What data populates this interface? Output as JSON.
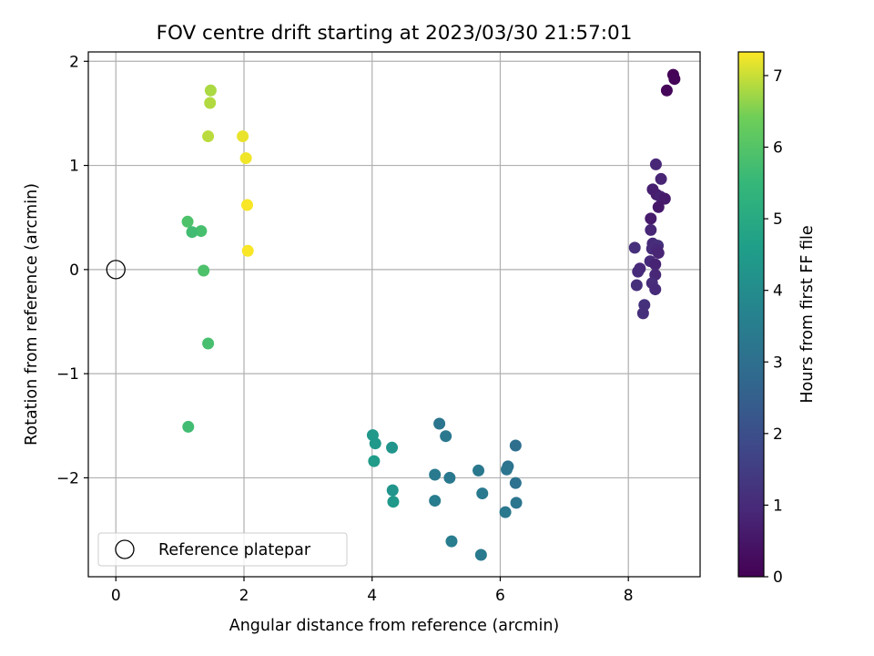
{
  "chart_data": {
    "type": "scatter",
    "title": "FOV centre drift starting at 2023/03/30 21:57:01",
    "xlabel": "Angular distance from reference (arcmin)",
    "ylabel": "Rotation from reference (arcmin)",
    "xlim": [
      -0.43,
      9.12
    ],
    "ylim": [
      -2.95,
      2.09
    ],
    "xticks": [
      0,
      2,
      4,
      6,
      8
    ],
    "xtick_labels": [
      "0",
      "2",
      "4",
      "6",
      "8"
    ],
    "yticks": [
      -2,
      -1,
      0,
      1,
      2
    ],
    "ytick_labels": [
      "−2",
      "−1",
      "0",
      "1",
      "2"
    ],
    "grid": true,
    "legend": {
      "placement": "lower-left",
      "entries": [
        "Reference platepar"
      ]
    },
    "reference_point": {
      "x": 0,
      "y": 0,
      "marker": "hollow-circle"
    },
    "colormap": "viridis",
    "colorbar": {
      "label": "Hours from first FF file",
      "range": [
        0,
        7.33
      ],
      "ticks": [
        0,
        1,
        2,
        3,
        4,
        5,
        6,
        7
      ],
      "tick_labels": [
        "0",
        "1",
        "2",
        "3",
        "4",
        "5",
        "6",
        "7"
      ]
    },
    "points": [
      {
        "x": 8.7,
        "y": 1.87,
        "c": 0.05
      },
      {
        "x": 8.72,
        "y": 1.83,
        "c": 0.08
      },
      {
        "x": 8.6,
        "y": 1.72,
        "c": 0.12
      },
      {
        "x": 8.43,
        "y": 1.01,
        "c": 0.9
      },
      {
        "x": 8.51,
        "y": 0.87,
        "c": 0.85
      },
      {
        "x": 8.38,
        "y": 0.77,
        "c": 0.7
      },
      {
        "x": 8.44,
        "y": 0.72,
        "c": 0.65
      },
      {
        "x": 8.5,
        "y": 0.7,
        "c": 0.75
      },
      {
        "x": 8.57,
        "y": 0.68,
        "c": 0.6
      },
      {
        "x": 8.47,
        "y": 0.6,
        "c": 0.55
      },
      {
        "x": 8.35,
        "y": 0.49,
        "c": 0.6
      },
      {
        "x": 8.35,
        "y": 0.38,
        "c": 0.9
      },
      {
        "x": 8.38,
        "y": 0.25,
        "c": 1.0
      },
      {
        "x": 8.46,
        "y": 0.23,
        "c": 1.1
      },
      {
        "x": 8.37,
        "y": 0.2,
        "c": 1.05
      },
      {
        "x": 8.44,
        "y": 0.19,
        "c": 0.95
      },
      {
        "x": 8.1,
        "y": 0.21,
        "c": 1.1
      },
      {
        "x": 8.47,
        "y": 0.16,
        "c": 0.85
      },
      {
        "x": 8.34,
        "y": 0.08,
        "c": 1.0
      },
      {
        "x": 8.42,
        "y": 0.05,
        "c": 0.8
      },
      {
        "x": 8.18,
        "y": 0.01,
        "c": 0.95
      },
      {
        "x": 8.15,
        "y": -0.02,
        "c": 1.0
      },
      {
        "x": 8.42,
        "y": -0.05,
        "c": 0.9
      },
      {
        "x": 8.37,
        "y": -0.13,
        "c": 1.05
      },
      {
        "x": 8.13,
        "y": -0.15,
        "c": 1.1
      },
      {
        "x": 8.42,
        "y": -0.19,
        "c": 1.0
      },
      {
        "x": 8.25,
        "y": -0.34,
        "c": 1.15
      },
      {
        "x": 8.23,
        "y": -0.42,
        "c": 1.1
      },
      {
        "x": 5.05,
        "y": -1.48,
        "c": 3.2
      },
      {
        "x": 5.15,
        "y": -1.6,
        "c": 3.3
      },
      {
        "x": 6.24,
        "y": -1.69,
        "c": 3.0
      },
      {
        "x": 6.12,
        "y": -1.89,
        "c": 3.1
      },
      {
        "x": 5.66,
        "y": -1.93,
        "c": 3.3
      },
      {
        "x": 6.1,
        "y": -1.92,
        "c": 3.2
      },
      {
        "x": 4.98,
        "y": -1.97,
        "c": 3.4
      },
      {
        "x": 5.21,
        "y": -2.0,
        "c": 3.3
      },
      {
        "x": 6.24,
        "y": -2.05,
        "c": 3.1
      },
      {
        "x": 5.72,
        "y": -2.15,
        "c": 3.4
      },
      {
        "x": 4.98,
        "y": -2.22,
        "c": 3.5
      },
      {
        "x": 6.25,
        "y": -2.24,
        "c": 3.2
      },
      {
        "x": 6.08,
        "y": -2.33,
        "c": 3.3
      },
      {
        "x": 5.24,
        "y": -2.61,
        "c": 3.5
      },
      {
        "x": 5.7,
        "y": -2.74,
        "c": 3.4
      },
      {
        "x": 4.01,
        "y": -1.59,
        "c": 4.4
      },
      {
        "x": 4.05,
        "y": -1.67,
        "c": 4.4
      },
      {
        "x": 4.31,
        "y": -1.71,
        "c": 4.3
      },
      {
        "x": 4.03,
        "y": -1.84,
        "c": 4.5
      },
      {
        "x": 4.32,
        "y": -2.12,
        "c": 4.3
      },
      {
        "x": 4.33,
        "y": -2.23,
        "c": 4.4
      },
      {
        "x": 1.12,
        "y": 0.46,
        "c": 5.9
      },
      {
        "x": 1.33,
        "y": 0.37,
        "c": 5.8
      },
      {
        "x": 1.19,
        "y": 0.36,
        "c": 5.7
      },
      {
        "x": 1.37,
        "y": -0.01,
        "c": 5.9
      },
      {
        "x": 1.44,
        "y": -0.71,
        "c": 5.8
      },
      {
        "x": 1.13,
        "y": -1.51,
        "c": 5.7
      },
      {
        "x": 1.48,
        "y": 1.72,
        "c": 6.8
      },
      {
        "x": 1.47,
        "y": 1.6,
        "c": 6.85
      },
      {
        "x": 1.44,
        "y": 1.28,
        "c": 6.9
      },
      {
        "x": 1.98,
        "y": 1.28,
        "c": 7.2
      },
      {
        "x": 2.03,
        "y": 1.07,
        "c": 7.25
      },
      {
        "x": 2.05,
        "y": 0.62,
        "c": 7.3
      },
      {
        "x": 2.06,
        "y": 0.18,
        "c": 7.3
      }
    ]
  }
}
